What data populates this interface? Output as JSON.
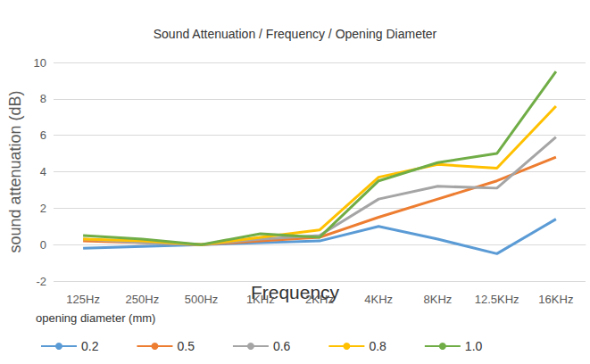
{
  "chart_data": {
    "type": "line",
    "title": "Sound Attenuation / Frequency / Opening Diameter",
    "x_label": "Frequency",
    "y_label": "sound attenuation (dB)",
    "legend_title": "opening diameter (mm)",
    "legend": "bottom",
    "grid": true,
    "categories": [
      "125Hz",
      "250Hz",
      "500Hz",
      "1KHz",
      "2KHz",
      "4KHz",
      "8KHz",
      "12.5KHz",
      "16KHz"
    ],
    "ylim": [
      -2,
      10
    ],
    "yticks": [
      -2,
      0,
      2,
      4,
      6,
      8,
      10
    ],
    "series": [
      {
        "name": "0.2",
        "color": "#5b9bd5",
        "values": [
          -0.2,
          -0.1,
          0,
          0.1,
          0.2,
          1.0,
          0.3,
          -0.5,
          1.4
        ]
      },
      {
        "name": "0.5",
        "color": "#ed7d31",
        "values": [
          0.2,
          0.1,
          0,
          0.2,
          0.4,
          1.5,
          2.5,
          3.5,
          4.8
        ]
      },
      {
        "name": "0.6",
        "color": "#a5a5a5",
        "values": [
          0.3,
          0.1,
          0,
          0.3,
          0.5,
          2.5,
          3.2,
          3.1,
          5.9
        ]
      },
      {
        "name": "0.8",
        "color": "#ffc000",
        "values": [
          0.3,
          0.2,
          0,
          0.4,
          0.8,
          3.7,
          4.4,
          4.2,
          7.6
        ]
      },
      {
        "name": "1.0",
        "color": "#70ad47",
        "values": [
          0.5,
          0.3,
          0,
          0.6,
          0.4,
          3.5,
          4.5,
          5.0,
          9.5
        ]
      }
    ]
  }
}
